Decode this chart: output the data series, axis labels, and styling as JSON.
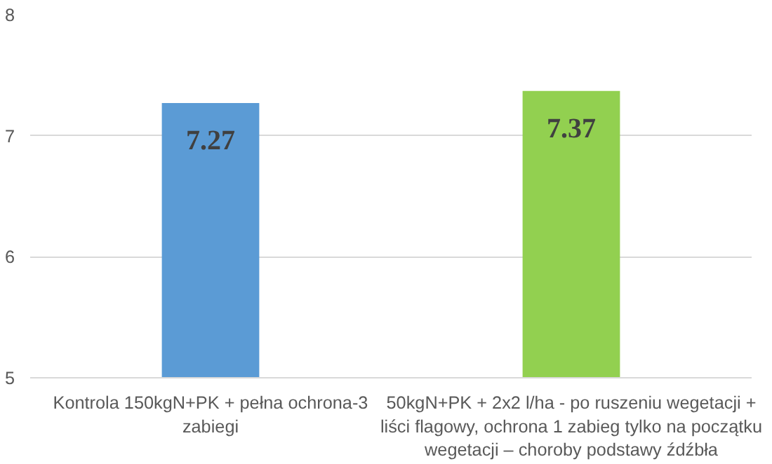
{
  "chart_data": {
    "type": "bar",
    "categories": [
      "Kontrola 150kgN+PK + pełna ochrona-3 zabiegi",
      "50kgN+PK + 2x2 l/ha - po ruszeniu wegetacji + liści flagowy, ochrona 1 zabieg tylko na początku wegetacji – choroby podstawy źdźbła"
    ],
    "values": [
      7.27,
      7.37
    ],
    "colors": [
      "#5b9bd5",
      "#92d050"
    ],
    "ylim": [
      5,
      8
    ],
    "yticks": [
      5,
      6,
      7,
      8
    ],
    "grid": "y",
    "data_labels": true
  }
}
